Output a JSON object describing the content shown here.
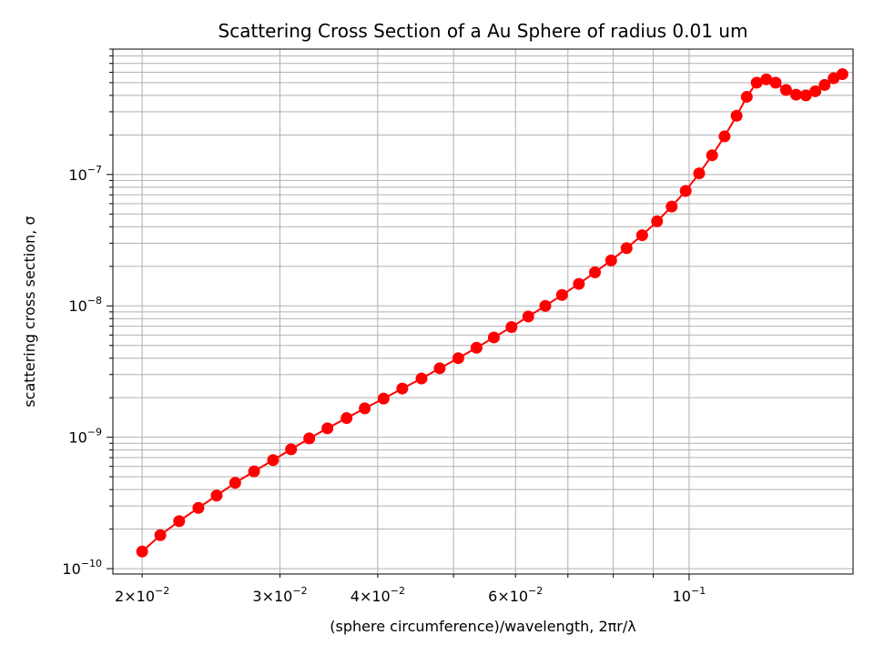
{
  "chart_data": {
    "type": "scatter",
    "title": "Scattering Cross Section of a Au Sphere of radius 0.01 um",
    "xlabel": "(sphere circumference)/wavelength, 2πr/λ",
    "ylabel": "scattering cross section, σ",
    "xscale": "log",
    "yscale": "log",
    "xlim": [
      0.01835,
      0.162
    ],
    "ylim": [
      9.1e-11,
      9e-07
    ],
    "grid": true,
    "grid_which": "both",
    "legend": "none",
    "line_color": "#ff0000",
    "marker_color": "#ff0000",
    "x_ticks": [
      {
        "value": 0.02,
        "mantissa": "2",
        "exponent": "−2"
      },
      {
        "value": 0.03,
        "mantissa": "3",
        "exponent": "−2"
      },
      {
        "value": 0.04,
        "mantissa": "4",
        "exponent": "−2"
      },
      {
        "value": 0.06,
        "mantissa": "6",
        "exponent": "−2"
      },
      {
        "value": 0.1,
        "mantissa": "",
        "exponent": "−1"
      }
    ],
    "y_ticks": [
      {
        "value": 1e-10,
        "exponent": "−10"
      },
      {
        "value": 1e-09,
        "exponent": "−9"
      },
      {
        "value": 1e-08,
        "exponent": "−8"
      },
      {
        "value": 1e-07,
        "exponent": "−7"
      }
    ],
    "series": [
      {
        "x": [
          0.02,
          0.0211,
          0.0223,
          0.0236,
          0.0249,
          0.0263,
          0.0278,
          0.0294,
          0.031,
          0.0327,
          0.0345,
          0.0365,
          0.0385,
          0.0407,
          0.043,
          0.0455,
          0.048,
          0.0507,
          0.0535,
          0.0563,
          0.0593,
          0.0623,
          0.0655,
          0.0688,
          0.0723,
          0.0758,
          0.0795,
          0.0832,
          0.0871,
          0.091,
          0.095,
          0.099,
          0.103,
          0.107,
          0.111,
          0.115,
          0.1185,
          0.122,
          0.1255,
          0.129,
          0.133,
          0.137,
          0.141,
          0.145,
          0.149,
          0.153,
          0.157
        ],
        "y": [
          1.35e-10,
          1.8e-10,
          2.3e-10,
          2.9e-10,
          3.6e-10,
          4.5e-10,
          5.5e-10,
          6.7e-10,
          8.1e-10,
          9.8e-10,
          1.17e-09,
          1.4e-09,
          1.66e-09,
          1.97e-09,
          2.35e-09,
          2.8e-09,
          3.35e-09,
          4e-09,
          4.8e-09,
          5.75e-09,
          6.9e-09,
          8.3e-09,
          1e-08,
          1.21e-08,
          1.47e-08,
          1.8e-08,
          2.22e-08,
          2.75e-08,
          3.45e-08,
          4.4e-08,
          5.7e-08,
          7.5e-08,
          1.02e-07,
          1.4e-07,
          1.95e-07,
          2.8e-07,
          3.9e-07,
          5e-07,
          5.3e-07,
          5e-07,
          4.4e-07,
          4.05e-07,
          4e-07,
          4.3e-07,
          4.8e-07,
          5.4e-07,
          5.8e-07
        ]
      }
    ]
  }
}
